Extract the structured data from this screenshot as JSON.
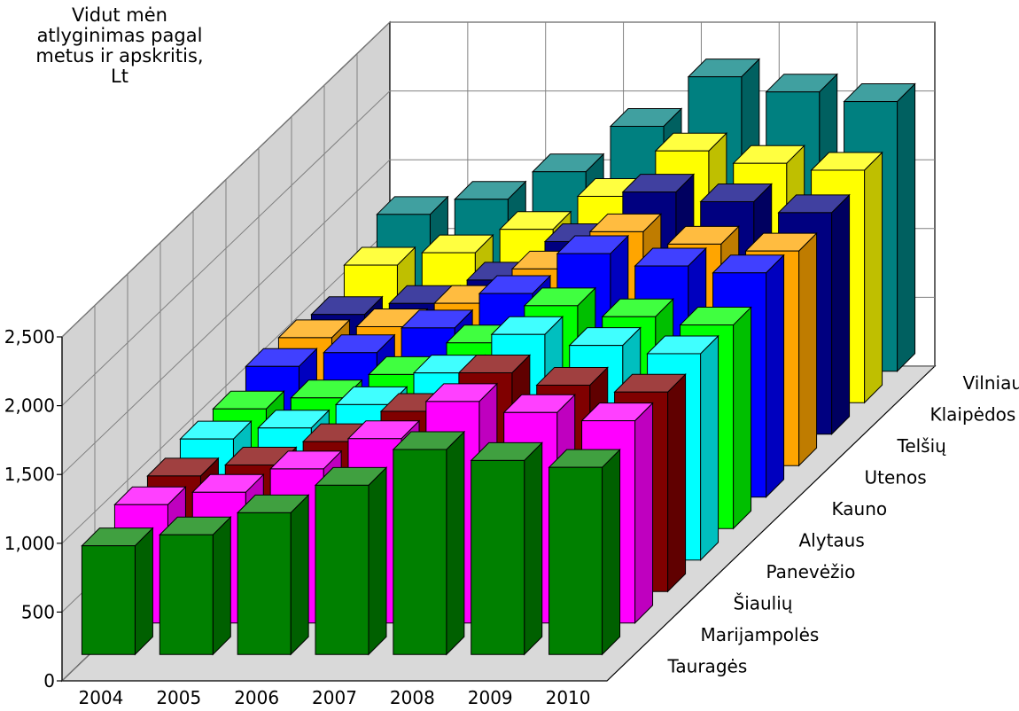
{
  "chart_data": {
    "type": "bar",
    "title": "Vidut mėn atlyginimas pagal metus ir apskritis, Lt",
    "title_lines": [
      "Vidut mėn",
      "atlyginimas pagal",
      "metus ir apskritis,",
      "Lt"
    ],
    "categories": [
      "2004",
      "2005",
      "2006",
      "2007",
      "2008",
      "2009",
      "2010"
    ],
    "ylim": [
      0,
      2500
    ],
    "yticks": [
      0,
      500,
      1000,
      1500,
      2000,
      2500
    ],
    "ytick_labels": [
      "0",
      "500",
      "1,000",
      "1,500",
      "2,000",
      "2,500"
    ],
    "grid": true,
    "projection": "3d",
    "series": [
      {
        "name": "Tauragės",
        "color": "#008000",
        "values": [
          790,
          870,
          1030,
          1230,
          1490,
          1410,
          1360
        ]
      },
      {
        "name": "Marijampolės",
        "color": "#ff00ff",
        "values": [
          860,
          950,
          1120,
          1340,
          1610,
          1530,
          1470
        ]
      },
      {
        "name": "Šiaulių",
        "color": "#800000",
        "values": [
          840,
          920,
          1090,
          1310,
          1590,
          1500,
          1450
        ]
      },
      {
        "name": "Panevėžio",
        "color": "#00ffff",
        "values": [
          880,
          960,
          1130,
          1360,
          1640,
          1560,
          1500
        ]
      },
      {
        "name": "Alytaus",
        "color": "#00ff00",
        "values": [
          870,
          950,
          1120,
          1350,
          1620,
          1540,
          1480
        ]
      },
      {
        "name": "Kauno",
        "color": "#0000ff",
        "values": [
          950,
          1050,
          1230,
          1480,
          1770,
          1680,
          1630
        ]
      },
      {
        "name": "Utenos",
        "color": "#ffa500",
        "values": [
          930,
          1010,
          1180,
          1430,
          1700,
          1610,
          1560
        ]
      },
      {
        "name": "Telšių",
        "color": "#000080",
        "values": [
          870,
          950,
          1120,
          1400,
          1760,
          1690,
          1610
        ]
      },
      {
        "name": "Klaipėdos",
        "color": "#ffff00",
        "values": [
          1000,
          1090,
          1260,
          1500,
          1830,
          1740,
          1690
        ]
      },
      {
        "name": "Vilniaus",
        "color": "#008080",
        "values": [
          1140,
          1250,
          1450,
          1780,
          2140,
          2030,
          1960
        ]
      }
    ]
  }
}
